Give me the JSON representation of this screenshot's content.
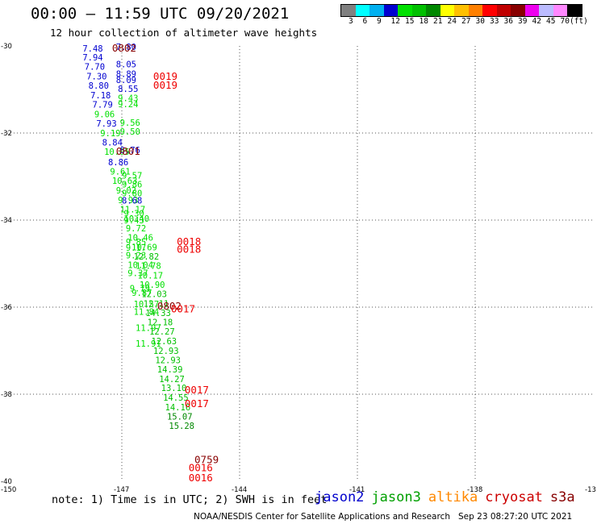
{
  "header": {
    "title": "00:00 – 11:59 UTC 09/20/2021",
    "subtitle": "12 hour collection of altimeter wave heights"
  },
  "colorbar": {
    "unit": "(ft)",
    "ticks": [
      "3",
      "6",
      "9",
      "12",
      "15",
      "18",
      "21",
      "24",
      "27",
      "30",
      "33",
      "36",
      "39",
      "42",
      "45",
      "70"
    ],
    "colors": [
      "#808080",
      "#00ffff",
      "#00b0f0",
      "#0000d0",
      "#00e000",
      "#00c000",
      "#008800",
      "#ffff00",
      "#ffc000",
      "#ff8000",
      "#ff0000",
      "#c00000",
      "#880000",
      "#ee00ee",
      "#bbbbff",
      "#ff88ff",
      "#000000"
    ]
  },
  "map": {
    "x_ticks": [
      "-150",
      "-147",
      "-144",
      "-141",
      "-138",
      "-13"
    ],
    "y_ticks": [
      "-30",
      "-32",
      "-34",
      "-36",
      "-38",
      "-40"
    ],
    "lon_range": [
      -150,
      -135
    ],
    "lat_range": [
      -40,
      -30
    ]
  },
  "observations": [
    {
      "lon": -148.0,
      "lat": -30.13,
      "v": "7.48"
    },
    {
      "lon": -148.0,
      "lat": -30.33,
      "v": "7.94"
    },
    {
      "lon": -147.95,
      "lat": -30.55,
      "v": "7.70"
    },
    {
      "lon": -147.9,
      "lat": -30.77,
      "v": "7.30"
    },
    {
      "lon": -147.85,
      "lat": -30.98,
      "v": "8.80"
    },
    {
      "lon": -147.8,
      "lat": -31.2,
      "v": "7.18"
    },
    {
      "lon": -147.75,
      "lat": -31.42,
      "v": "7.79"
    },
    {
      "lon": -147.7,
      "lat": -31.64,
      "v": "9.06"
    },
    {
      "lon": -147.65,
      "lat": -31.85,
      "v": "7.93"
    },
    {
      "lon": -147.55,
      "lat": -32.07,
      "v": "9.19"
    },
    {
      "lon": -147.5,
      "lat": -32.29,
      "v": "8.84"
    },
    {
      "lon": -147.45,
      "lat": -32.5,
      "v": "10.05"
    },
    {
      "lon": -147.35,
      "lat": -32.74,
      "v": "8.86"
    },
    {
      "lon": -147.3,
      "lat": -32.95,
      "v": "9.61"
    },
    {
      "lon": -147.25,
      "lat": -33.17,
      "v": "10.63"
    },
    {
      "lon": -147.15,
      "lat": -33.39,
      "v": "9.02"
    },
    {
      "lon": -147.1,
      "lat": -33.61,
      "v": "9.93"
    },
    {
      "lon": -147.05,
      "lat": -33.82,
      "v": "11.17"
    },
    {
      "lon": -146.95,
      "lat": -34.04,
      "v": "10.40"
    },
    {
      "lon": -146.9,
      "lat": -34.26,
      "v": "9.72"
    },
    {
      "lon": -146.85,
      "lat": -34.47,
      "v": "10.46"
    },
    {
      "lon": -146.75,
      "lat": -34.69,
      "v": "10.69"
    },
    {
      "lon": -146.7,
      "lat": -34.91,
      "v": "12.82"
    },
    {
      "lon": -146.65,
      "lat": -35.12,
      "v": "11.78"
    },
    {
      "lon": -146.6,
      "lat": -35.34,
      "v": "10.17"
    },
    {
      "lon": -146.55,
      "lat": -35.56,
      "v": "10.90"
    },
    {
      "lon": -146.5,
      "lat": -35.77,
      "v": "12.03"
    },
    {
      "lon": -146.45,
      "lat": -35.99,
      "v": "12.11"
    },
    {
      "lon": -146.4,
      "lat": -36.2,
      "v": "14.33"
    },
    {
      "lon": -146.35,
      "lat": -36.42,
      "v": "12.18"
    },
    {
      "lon": -146.3,
      "lat": -36.63,
      "v": "12.27"
    },
    {
      "lon": -146.25,
      "lat": -36.85,
      "v": "12.63"
    },
    {
      "lon": -146.2,
      "lat": -37.07,
      "v": "12.93"
    },
    {
      "lon": -146.15,
      "lat": -37.29,
      "v": "12.93"
    },
    {
      "lon": -146.1,
      "lat": -37.5,
      "v": "14.39"
    },
    {
      "lon": -146.05,
      "lat": -37.72,
      "v": "14.27"
    },
    {
      "lon": -146.0,
      "lat": -37.93,
      "v": "13.10"
    },
    {
      "lon": -145.95,
      "lat": -38.15,
      "v": "14.55"
    },
    {
      "lon": -145.9,
      "lat": -38.37,
      "v": "14.16"
    },
    {
      "lon": -145.85,
      "lat": -38.58,
      "v": "15.07"
    },
    {
      "lon": -145.8,
      "lat": -38.8,
      "v": "15.28"
    },
    {
      "lon": -147.15,
      "lat": -30.09,
      "v": "7.80"
    },
    {
      "lon": -147.15,
      "lat": -30.49,
      "v": "8.05"
    },
    {
      "lon": -147.15,
      "lat": -30.71,
      "v": "8.89"
    },
    {
      "lon": -147.15,
      "lat": -30.85,
      "v": "8.09"
    },
    {
      "lon": -147.1,
      "lat": -31.06,
      "v": "8.55"
    },
    {
      "lon": -147.1,
      "lat": -31.27,
      "v": "9.43"
    },
    {
      "lon": -147.1,
      "lat": -31.41,
      "v": "9.24"
    },
    {
      "lon": -147.05,
      "lat": -31.83,
      "v": "9.56"
    },
    {
      "lon": -147.05,
      "lat": -32.04,
      "v": "9.50"
    },
    {
      "lon": -147.05,
      "lat": -32.46,
      "v": "8.76"
    },
    {
      "lon": -147.0,
      "lat": -33.05,
      "v": "9.57"
    },
    {
      "lon": -147.0,
      "lat": -33.25,
      "v": "9.86"
    },
    {
      "lon": -147.0,
      "lat": -33.45,
      "v": "9.80"
    },
    {
      "lon": -147.0,
      "lat": -33.62,
      "v": "8.68"
    },
    {
      "lon": -146.95,
      "lat": -33.92,
      "v": "9.30"
    },
    {
      "lon": -146.95,
      "lat": -34.07,
      "v": "9.43"
    },
    {
      "lon": -146.9,
      "lat": -34.57,
      "v": "9.85"
    },
    {
      "lon": -146.9,
      "lat": -34.7,
      "v": "9.17"
    },
    {
      "lon": -146.9,
      "lat": -34.88,
      "v": "9.23"
    },
    {
      "lon": -146.85,
      "lat": -35.1,
      "v": "10.04"
    },
    {
      "lon": -146.85,
      "lat": -35.29,
      "v": "9.37"
    },
    {
      "lon": -146.8,
      "lat": -35.64,
      "v": "9.79"
    },
    {
      "lon": -146.75,
      "lat": -35.74,
      "v": "9.87"
    },
    {
      "lon": -146.7,
      "lat": -36.0,
      "v": "10.57"
    },
    {
      "lon": -146.7,
      "lat": -36.18,
      "v": "11.84"
    },
    {
      "lon": -146.65,
      "lat": -36.55,
      "v": "11.97"
    },
    {
      "lon": -146.65,
      "lat": -36.91,
      "v": "11.91"
    }
  ],
  "pass_labels": [
    {
      "lon": -147.25,
      "lat": -30.13,
      "v": "0802"
    },
    {
      "lon": -146.2,
      "lat": -30.78,
      "v": "0019"
    },
    {
      "lon": -146.2,
      "lat": -30.98,
      "v": "0019"
    },
    {
      "lon": -147.15,
      "lat": -32.5,
      "v": "0801"
    },
    {
      "lon": -145.6,
      "lat": -34.57,
      "v": "0018"
    },
    {
      "lon": -145.6,
      "lat": -34.75,
      "v": "0018"
    },
    {
      "lon": -146.1,
      "lat": -36.06,
      "v": "0802"
    },
    {
      "lon": -145.75,
      "lat": -36.12,
      "v": "0017"
    },
    {
      "lon": -145.4,
      "lat": -37.98,
      "v": "0017"
    },
    {
      "lon": -145.4,
      "lat": -38.3,
      "v": "0017"
    },
    {
      "lon": -145.15,
      "lat": -39.58,
      "v": "0759"
    },
    {
      "lon": -145.3,
      "lat": -39.77,
      "v": "0016"
    },
    {
      "lon": -145.3,
      "lat": -40.0,
      "v": "0016"
    }
  ],
  "note": "note: 1) Time is in UTC; 2) SWH is in feet",
  "legend": [
    {
      "name": "jason2",
      "color": "#0000cc"
    },
    {
      "name": "jason3",
      "color": "#00a000"
    },
    {
      "name": "altika",
      "color": "#ff8800"
    },
    {
      "name": "cryosat",
      "color": "#cc0000"
    },
    {
      "name": "s3a",
      "color": "#880000"
    }
  ],
  "footer": "NOAA/NESDIS Center for Satellite Applications and Research   Sep 23 08:27:20 UTC 2021"
}
